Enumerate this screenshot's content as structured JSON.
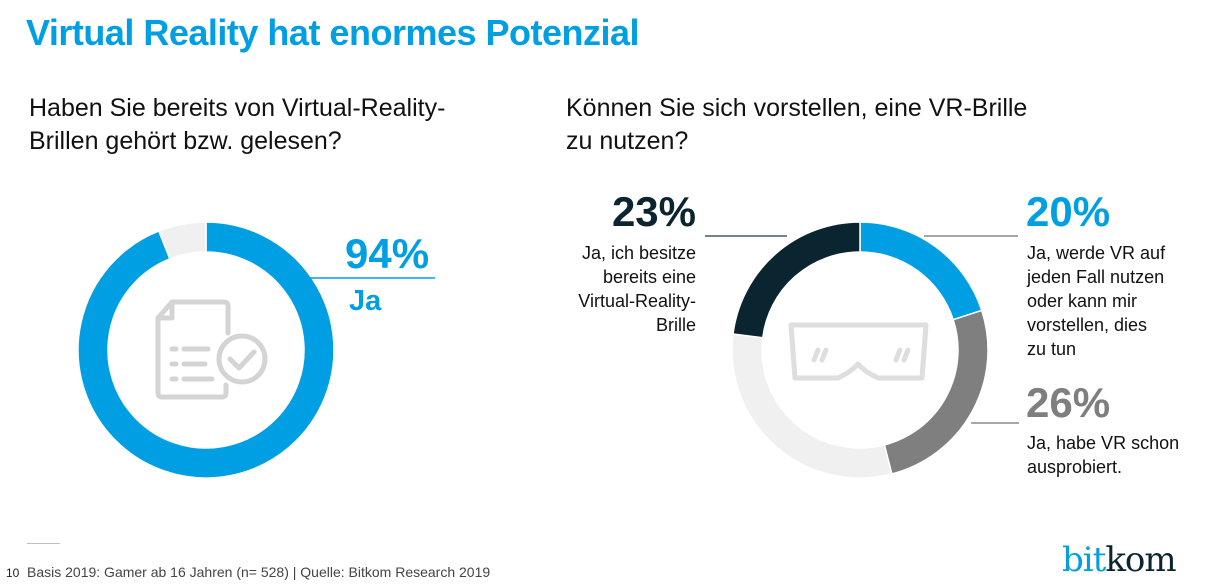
{
  "header": {
    "title": "Virtual Reality hat enormes Potenzial"
  },
  "left_panel": {
    "question": [
      "Haben Sie bereits von Virtual-Reality-",
      "Brillen gehört bzw. gelesen?"
    ],
    "icon": "document-checklist-icon",
    "value_label": "94%",
    "category_label": "Ja"
  },
  "right_panel": {
    "question": [
      "Können Sie sich vorstellen, eine VR-Brille",
      "zu nutzen?"
    ],
    "icon": "vr-goggles-icon",
    "labels": [
      {
        "value_label": "23%",
        "text": [
          "Ja, ich besitze",
          "bereits eine",
          "Virtual-Reality-",
          "Brille"
        ]
      },
      {
        "value_label": "20%",
        "text": [
          "Ja, werde VR auf",
          "jeden Fall nutzen",
          "oder kann mir",
          "vorstellen, dies",
          "zu tun"
        ]
      },
      {
        "value_label": "26%",
        "text": [
          "Ja, habe VR schon",
          "ausprobiert."
        ]
      }
    ]
  },
  "colors": {
    "accent_blue": "#009fe3",
    "dark_navy": "#0b2530",
    "mid_gray": "#7f7f7f",
    "light_gray": "#f0f0f0"
  },
  "chart_data": [
    {
      "type": "pie",
      "subtype": "donut",
      "title": "Haben Sie bereits von Virtual-Reality-Brillen gehört bzw. gelesen?",
      "categories": [
        "Ja",
        "Rest"
      ],
      "values": [
        94,
        6
      ],
      "colors": [
        "#009fe3",
        "#f0f0f0"
      ],
      "start": "12 o'clock, clockwise",
      "annotations": [
        {
          "label": "94%",
          "text": "Ja"
        }
      ]
    },
    {
      "type": "pie",
      "subtype": "donut",
      "title": "Können Sie sich vorstellen, eine VR-Brille zu nutzen?",
      "categories": [
        "Ja, werde VR auf jeden Fall nutzen oder kann mir vorstellen, dies zu tun",
        "Ja, habe VR schon ausprobiert.",
        "Rest",
        "Ja, ich besitze bereits eine Virtual-Reality-Brille"
      ],
      "values": [
        20,
        26,
        31,
        23
      ],
      "colors": [
        "#009fe3",
        "#7f7f7f",
        "#f0f0f0",
        "#0b2530"
      ],
      "start": "12 o'clock, clockwise"
    }
  ],
  "footer": {
    "page_number": "10",
    "source": "Basis 2019: Gamer ab 16 Jahren (n= 528) | Quelle: Bitkom Research 2019",
    "logo_part1": "bit",
    "logo_part2": "kom"
  }
}
